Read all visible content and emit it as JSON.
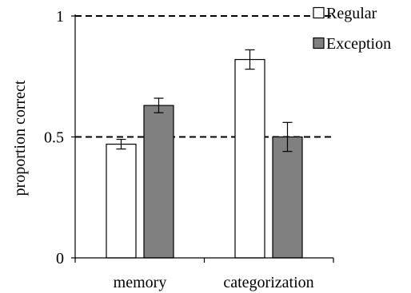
{
  "chart_data": {
    "type": "bar",
    "categories": [
      "memory",
      "categorization"
    ],
    "series": [
      {
        "name": "Regular",
        "values": [
          0.47,
          0.82
        ],
        "errors": [
          0.02,
          0.04
        ],
        "color": "#ffffff"
      },
      {
        "name": "Exception",
        "values": [
          0.63,
          0.5
        ],
        "errors": [
          0.03,
          0.06
        ],
        "color": "#808080"
      }
    ],
    "ylabel": "proportion correct",
    "ylim": [
      0,
      1
    ],
    "yticks": [
      {
        "value": 0,
        "label": "0"
      },
      {
        "value": 0.5,
        "label": "0.5"
      },
      {
        "value": 1,
        "label": "1"
      }
    ],
    "reference_lines": [
      0.5,
      1
    ],
    "reference_line_style": "dashed",
    "legend_position": "top-right",
    "grid": false
  }
}
